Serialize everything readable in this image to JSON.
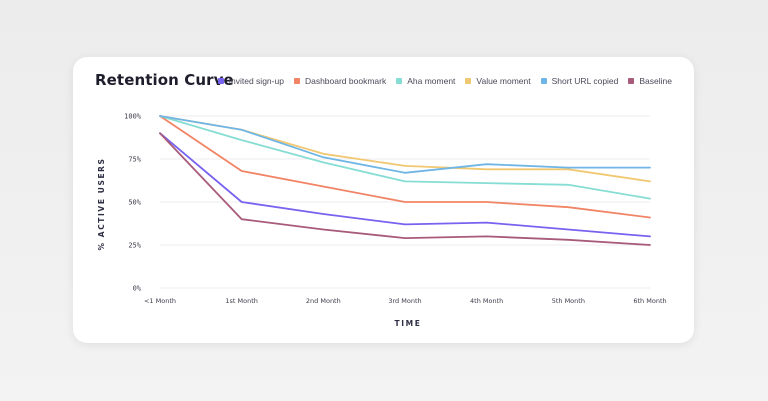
{
  "chart_data": {
    "type": "line",
    "title": "Retention Curve",
    "xlabel": "TIME",
    "ylabel": "% ACTIVE USERS",
    "ylim": [
      0,
      100
    ],
    "y_ticks": [
      "0%",
      "25%",
      "50%",
      "75%",
      "100%"
    ],
    "y_tick_values": [
      0,
      25,
      50,
      75,
      100
    ],
    "categories": [
      "<1 Month",
      "1st Month",
      "2nd Month",
      "3rd Month",
      "4th Month",
      "5th Month",
      "6th Month"
    ],
    "grid": true,
    "legend_position": "top-right",
    "series": [
      {
        "name": "Invited sign-up",
        "color": "#7763ef",
        "values": [
          90,
          50,
          43,
          37,
          38,
          34,
          30
        ]
      },
      {
        "name": "Dashboard bookmark",
        "color": "#f28466",
        "values": [
          100,
          68,
          59,
          50,
          50,
          47,
          41
        ]
      },
      {
        "name": "Aha moment",
        "color": "#86ddd4",
        "values": [
          100,
          86,
          73,
          62,
          61,
          60,
          52
        ]
      },
      {
        "name": "Value moment",
        "color": "#f1c872",
        "values": [
          100,
          92,
          78,
          71,
          69,
          69,
          62
        ]
      },
      {
        "name": "Short URL copied",
        "color": "#6fb6e6",
        "values": [
          100,
          92,
          76,
          67,
          72,
          70,
          70
        ]
      },
      {
        "name": "Baseline",
        "color": "#a85a7a",
        "values": [
          90,
          40,
          34,
          29,
          30,
          28,
          25
        ]
      }
    ]
  }
}
